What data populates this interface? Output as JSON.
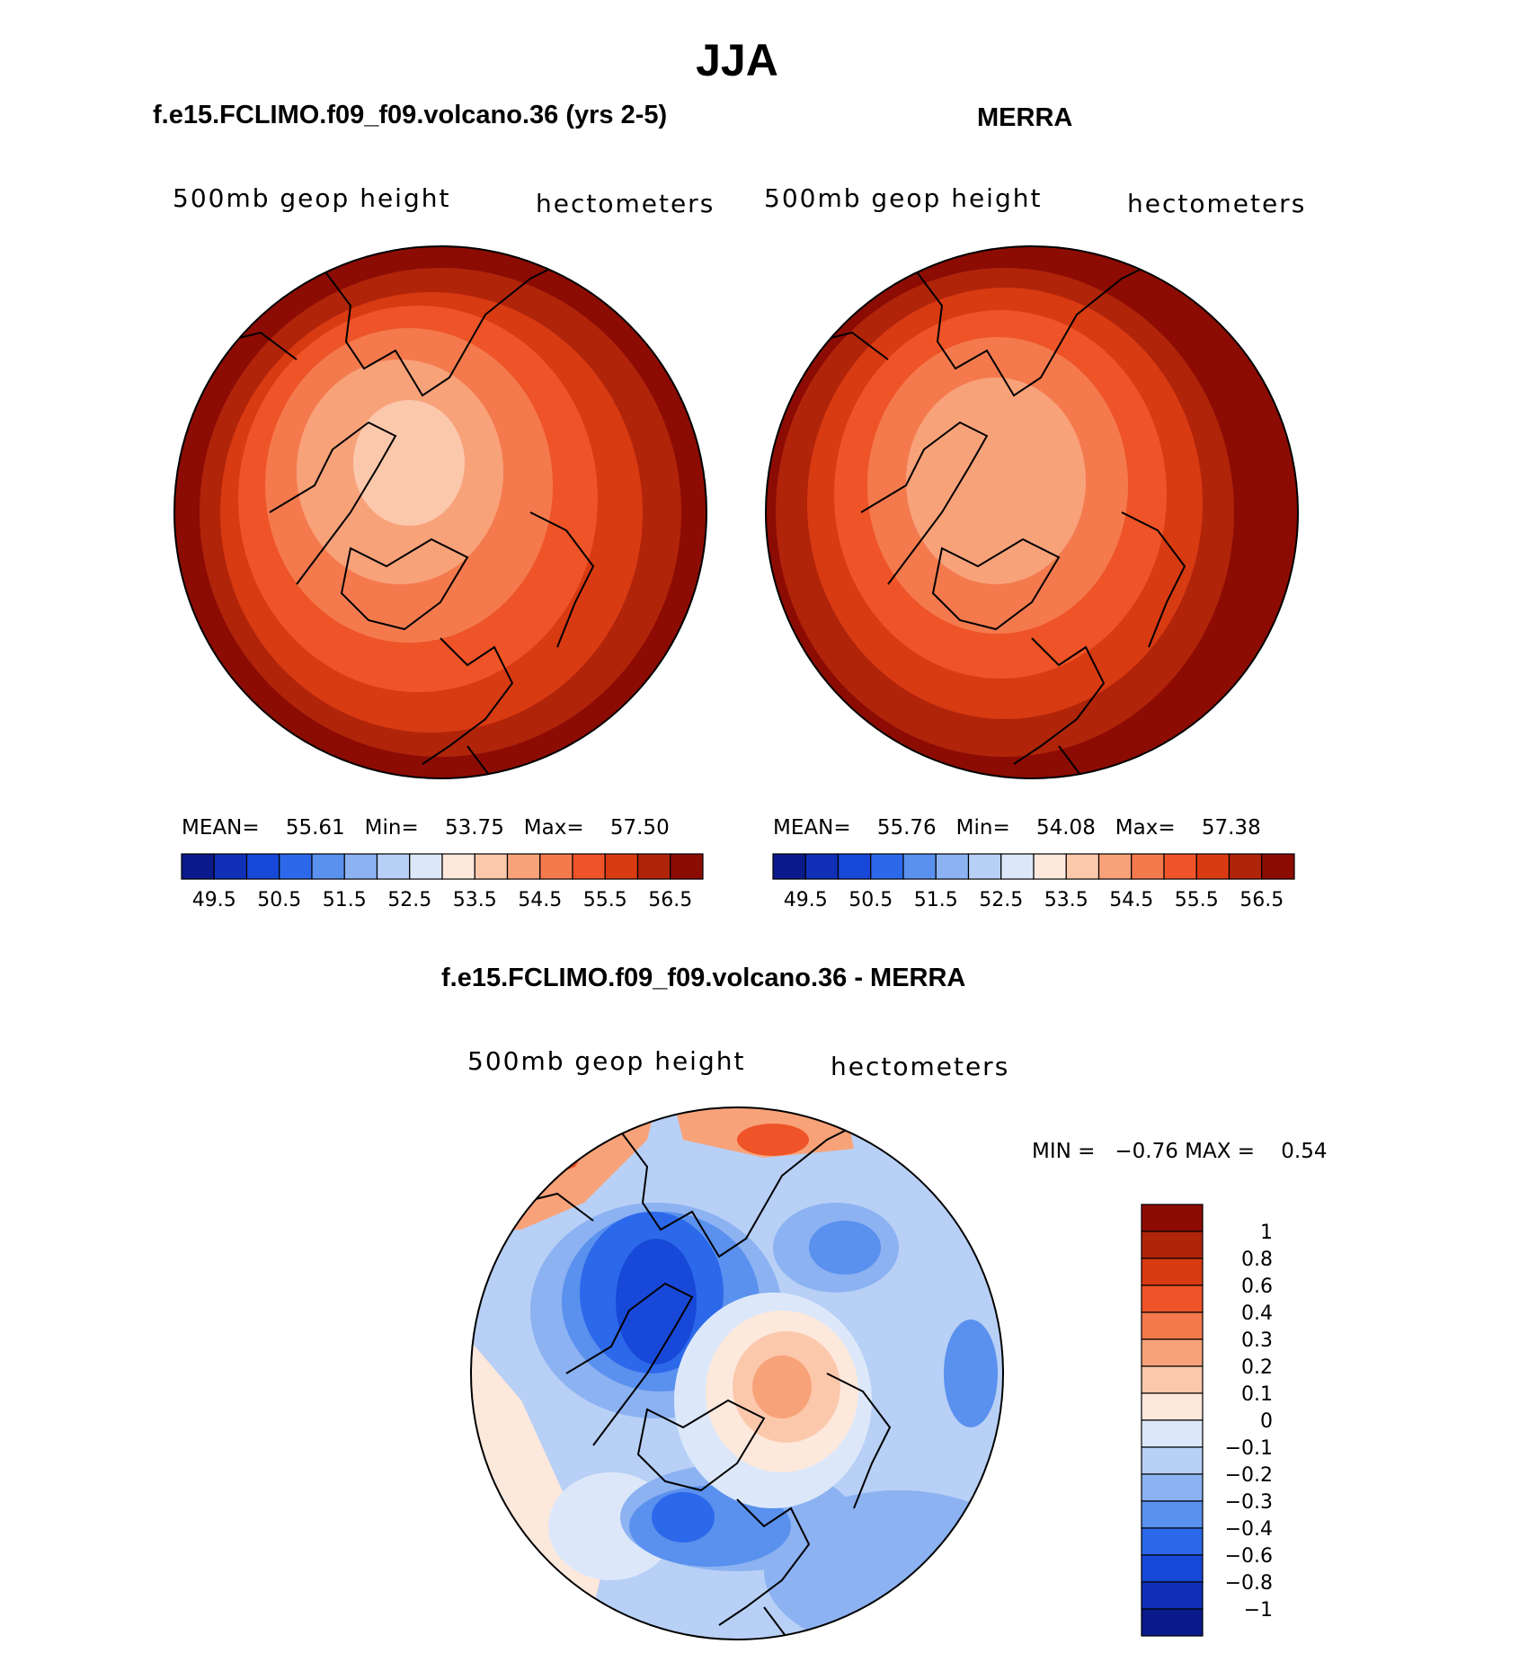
{
  "page_title": "JJA",
  "panels": [
    {
      "title": "f.e15.FCLIMO.f09_f09.volcano.36 (yrs 2-5)",
      "left_label": "500mb geop height",
      "right_label": "hectometers",
      "stats": {
        "mean_label": "MEAN=",
        "mean": "55.61",
        "min_label": "Min=",
        "min": "53.75",
        "max_label": "Max=",
        "max": "57.50"
      }
    },
    {
      "title": "MERRA",
      "left_label": "500mb geop height",
      "right_label": "hectometers",
      "stats": {
        "mean_label": "MEAN=",
        "mean": "55.76",
        "min_label": "Min=",
        "min": "54.08",
        "max_label": "Max=",
        "max": "57.38"
      }
    },
    {
      "title": "f.e15.FCLIMO.f09_f09.volcano.36 - MERRA",
      "left_label": "500mb geop height",
      "right_label": "hectometers",
      "minmax": "MIN =   −0.76 MAX =    0.54"
    }
  ],
  "colorbar_abs": {
    "colors": [
      "#0a1a8a",
      "#1030b8",
      "#1848d8",
      "#2c68ea",
      "#5a90ee",
      "#8cb2f2",
      "#b8d0f6",
      "#dce8fa",
      "#fde8dc",
      "#fcc8ac",
      "#f8a27a",
      "#f47a4e",
      "#ee5428",
      "#d83a12",
      "#b0240a",
      "#8c0c04"
    ],
    "tick_labels": [
      "49.5",
      "50.5",
      "51.5",
      "52.5",
      "53.5",
      "54.5",
      "55.5",
      "56.5"
    ]
  },
  "colorbar_diff": {
    "colors_top_to_bottom": [
      "#8c0c04",
      "#b0240a",
      "#d83a12",
      "#ee5428",
      "#f47a4e",
      "#f8a27a",
      "#fcc8ac",
      "#fde8dc",
      "#dce8fa",
      "#b8d0f6",
      "#8cb2f2",
      "#5a90ee",
      "#2c68ea",
      "#1848d8",
      "#1030b8",
      "#0a1a8a"
    ],
    "tick_labels": [
      "1",
      "0.8",
      "0.6",
      "0.4",
      "0.3",
      "0.2",
      "0.1",
      "0",
      "−0.1",
      "−0.2",
      "−0.3",
      "−0.4",
      "−0.6",
      "−0.8",
      "−1"
    ]
  },
  "chart_data": [
    {
      "type": "heatmap",
      "title": "f.e15.FCLIMO.f09_f09.volcano.36 (yrs 2-5)",
      "field": "500mb geop height",
      "units": "hectometers",
      "projection": "north polar stereographic",
      "mean": 55.61,
      "min": 53.75,
      "max": 57.5,
      "contour_levels": [
        49.5,
        50.0,
        50.5,
        51.0,
        51.5,
        52.0,
        52.5,
        53.0,
        53.5,
        54.0,
        54.5,
        55.0,
        55.5,
        56.0,
        56.5
      ],
      "series": [
        {
          "name": "polar rings",
          "values": [
            53.75,
            54.0,
            54.5,
            55.0,
            55.5,
            56.0,
            56.5,
            57.0,
            57.5
          ]
        }
      ]
    },
    {
      "type": "heatmap",
      "title": "MERRA",
      "field": "500mb geop height",
      "units": "hectometers",
      "projection": "north polar stereographic",
      "mean": 55.76,
      "min": 54.08,
      "max": 57.38,
      "contour_levels": [
        49.5,
        50.0,
        50.5,
        51.0,
        51.5,
        52.0,
        52.5,
        53.0,
        53.5,
        54.0,
        54.5,
        55.0,
        55.5,
        56.0,
        56.5
      ],
      "series": [
        {
          "name": "polar rings",
          "values": [
            54.08,
            54.5,
            55.0,
            55.5,
            56.0,
            56.5,
            57.0,
            57.38
          ]
        }
      ]
    },
    {
      "type": "heatmap",
      "title": "f.e15.FCLIMO.f09_f09.volcano.36 - MERRA",
      "field": "500mb geop height",
      "units": "hectometers",
      "projection": "north polar stereographic",
      "min": -0.76,
      "max": 0.54,
      "contour_levels": [
        -1,
        -0.8,
        -0.6,
        -0.4,
        -0.3,
        -0.2,
        -0.1,
        0,
        0.1,
        0.2,
        0.3,
        0.4,
        0.6,
        0.8,
        1
      ]
    }
  ]
}
